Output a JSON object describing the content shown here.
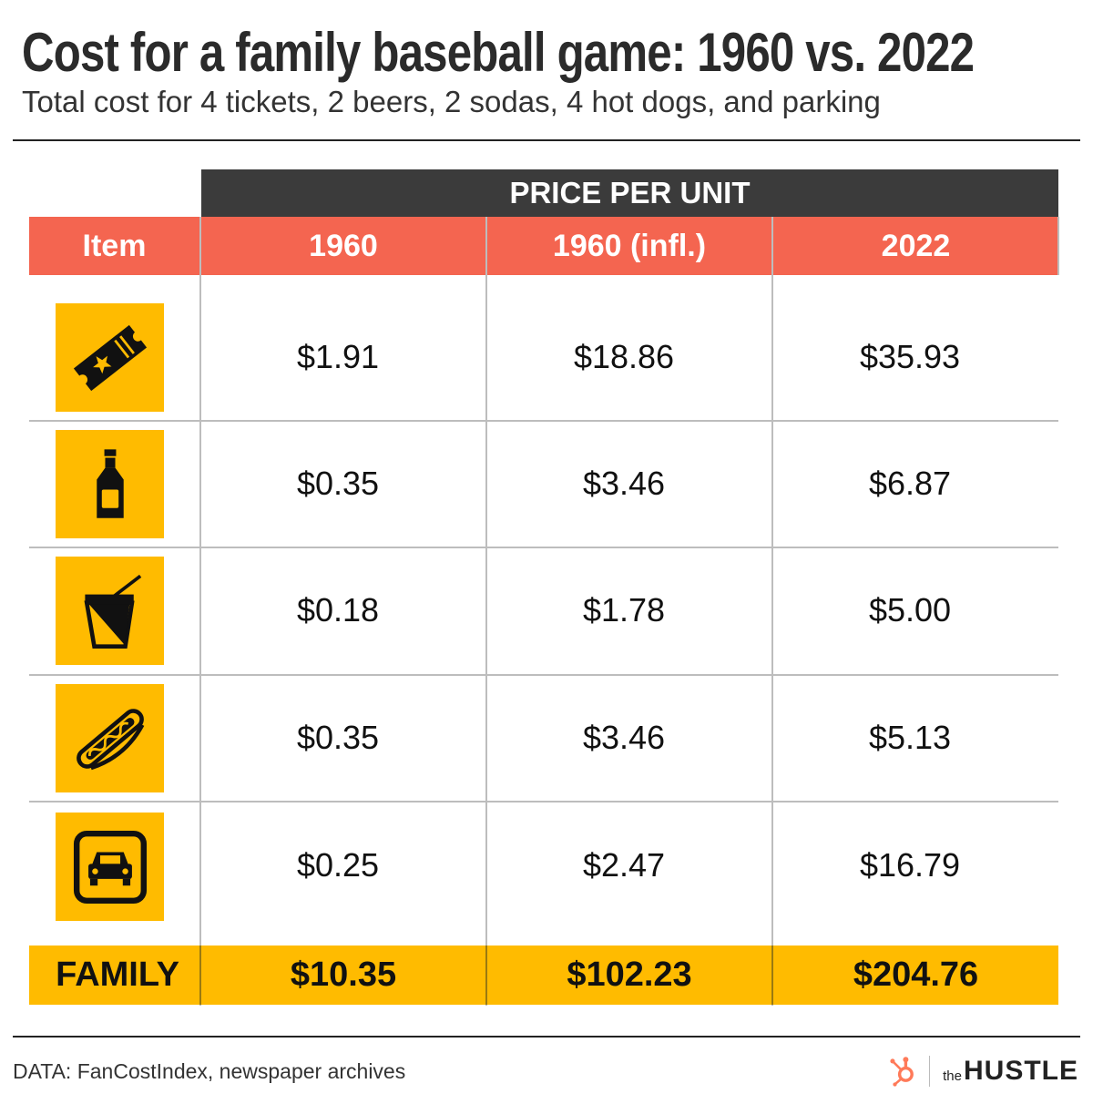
{
  "title": "Cost for a family baseball game: 1960 vs. 2022",
  "subtitle": "Total cost for 4 tickets, 2 beers, 2 sodas, 4 hot dogs, and parking",
  "colors": {
    "header_dark": "#3b3b3b",
    "header_accent": "#f46550",
    "highlight": "#ffbb00",
    "grid": "#bdbdbd"
  },
  "table": {
    "group_header": "PRICE PER UNIT",
    "columns": [
      "Item",
      "1960",
      "1960 (infl.)",
      "2022"
    ]
  },
  "chart_data": {
    "type": "table",
    "title": "Cost for a family baseball game: 1960 vs. 2022",
    "subtitle": "Total cost for 4 tickets, 2 beers, 2 sodas, 4 hot dogs, and parking",
    "columns": [
      "Item",
      "1960",
      "1960 (infl.)",
      "2022"
    ],
    "rows": [
      {
        "icon": "ticket-icon",
        "values": [
          "$1.91",
          "$18.86",
          "$35.93"
        ]
      },
      {
        "icon": "beer-bottle-icon",
        "values": [
          "$0.35",
          "$3.46",
          "$6.87"
        ]
      },
      {
        "icon": "soda-cup-icon",
        "values": [
          "$0.18",
          "$1.78",
          "$5.00"
        ]
      },
      {
        "icon": "hot-dog-icon",
        "values": [
          "$0.35",
          "$3.46",
          "$5.13"
        ]
      },
      {
        "icon": "parking-car-icon",
        "values": [
          "$0.25",
          "$2.47",
          "$16.79"
        ]
      }
    ],
    "total": {
      "label": "FAMILY",
      "values": [
        "$10.35",
        "$102.23",
        "$204.76"
      ]
    }
  },
  "footer": {
    "source": "DATA: FanCostIndex, newspaper archives",
    "brand_prefix": "the",
    "brand_name": "HUSTLE",
    "brand_icon": "hubspot-sprocket-icon"
  }
}
